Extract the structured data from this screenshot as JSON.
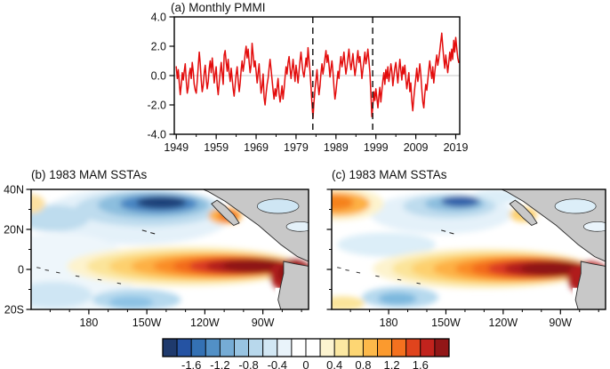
{
  "figure": {
    "background": "#ffffff"
  },
  "chart_data": [
    {
      "id": "a",
      "type": "line",
      "title": "(a) Monthly PMMI",
      "xlim": [
        1948.5,
        2020
      ],
      "ylim": [
        -4,
        4
      ],
      "x_ticks": [
        1949,
        1959,
        1969,
        1979,
        1989,
        1999,
        2009,
        2019
      ],
      "x_tick_labels": [
        "1949",
        "1959",
        "1969",
        "1979",
        "1989",
        "1999",
        "2009",
        "2019"
      ],
      "y_ticks": [
        4,
        2,
        0,
        -2,
        -4
      ],
      "y_tick_labels": [
        "4.0",
        "2.0",
        "0.0",
        "-2.0",
        "-4.0"
      ],
      "line_color": "#e30d0d",
      "zero_line_color": "#c9c9c9",
      "event_line_years": [
        1983.2,
        1998.2
      ],
      "x_start": 1949,
      "x_step": 0.25,
      "values": [
        0.6,
        -0.2,
        0.4,
        -0.5,
        -1.3,
        -0.6,
        0.2,
        -0.3,
        0.3,
        0.8,
        -0.4,
        -1.2,
        -0.8,
        0.1,
        0.5,
        -0.2,
        0.9,
        0.3,
        -0.6,
        -1.0,
        -1.2,
        -0.4,
        0.6,
        1.6,
        0.8,
        -0.3,
        -1.1,
        -0.7,
        0.2,
        0.7,
        -0.2,
        -0.9,
        -0.4,
        0.5,
        1.0,
        0.2,
        1.2,
        0.4,
        -0.5,
        0.1,
        0.6,
        -0.7,
        -1.3,
        -0.5,
        0.2,
        0.9,
        0.1,
        -0.6,
        1.4,
        1.7,
        0.9,
        0.3,
        1.1,
        0.2,
        -0.4,
        0.5,
        -0.2,
        -0.9,
        -1.4,
        -0.6,
        0.1,
        0.6,
        -0.3,
        -1.1,
        -0.5,
        0.4,
        1.0,
        0.3,
        0.8,
        1.5,
        2.0,
        1.2,
        1.8,
        0.9,
        0.2,
        0.7,
        2.2,
        1.4,
        0.6,
        1.0,
        0.3,
        -0.5,
        0.2,
        0.8,
        -0.3,
        -1.2,
        -0.7,
        0.1,
        -1.5,
        -2.0,
        -1.2,
        -0.6,
        -0.2,
        0.5,
        1.1,
        0.4,
        -0.3,
        -1.0,
        -1.6,
        -0.9,
        -1.4,
        -0.8,
        -0.2,
        -1.2,
        -1.8,
        -1.3,
        -0.7,
        -1.6,
        -0.9,
        -0.1,
        0.6,
        0.1,
        0.9,
        1.3,
        0.5,
        -0.2,
        0.4,
        1.1,
        0.3,
        -0.4,
        0.7,
        0.1,
        -0.5,
        0.3,
        1.0,
        1.6,
        0.8,
        0.2,
        -0.1,
        0.5,
        1.2,
        0.6,
        1.9,
        1.1,
        0.3,
        -0.8,
        -2.0,
        -2.9,
        -1.8,
        -0.9,
        -0.3,
        0.4,
        -0.6,
        -1.3,
        -0.7,
        0.2,
        0.8,
        0.1,
        0.6,
        1.2,
        1.7,
        0.9,
        1.4,
        0.7,
        -0.1,
        0.5,
        1.0,
        0.2,
        -0.8,
        -1.6,
        -1.1,
        -0.4,
        0.3,
        -0.2,
        0.7,
        1.3,
        0.6,
        1.0,
        1.6,
        0.8,
        0.1,
        0.6,
        1.2,
        1.8,
        1.0,
        0.4,
        0.9,
        1.5,
        0.7,
        0.0,
        0.5,
        1.1,
        1.7,
        0.9,
        1.3,
        0.6,
        -0.2,
        0.4,
        1.0,
        1.6,
        0.8,
        1.2,
        1.8,
        1.0,
        0.2,
        -1.2,
        -2.8,
        -2.0,
        -1.1,
        -1.7,
        -0.9,
        -1.5,
        -2.2,
        -1.4,
        -0.8,
        -1.8,
        -1.0,
        -0.3,
        0.2,
        -0.6,
        0.4,
        -0.2,
        0.6,
        -0.4,
        0.1,
        0.8,
        0.3,
        -0.7,
        -0.1,
        0.5,
        0.9,
        0.2,
        -0.5,
        0.3,
        1.1,
        0.4,
        -0.3,
        0.6,
        0.1,
        0.7,
        -0.2,
        -0.9,
        -0.4,
        0.2,
        -1.1,
        -0.5,
        -1.7,
        -2.4,
        -1.5,
        -0.8,
        -0.2,
        0.5,
        -0.4,
        0.1,
        0.8,
        0.1,
        -0.9,
        -1.8,
        -2.2,
        -1.3,
        -0.6,
        -1.0,
        -0.3,
        0.4,
        1.0,
        0.3,
        -0.2,
        0.6,
        -0.5,
        0.2,
        0.9,
        1.4,
        0.7,
        1.1,
        1.7,
        2.3,
        2.9,
        2.0,
        1.2,
        0.5,
        1.4,
        0.8,
        0.2,
        0.9,
        1.6,
        1.0,
        1.8,
        1.1,
        2.4,
        1.6,
        2.6,
        1.9,
        1.2,
        0.9
      ]
    },
    {
      "id": "b",
      "type": "contour-map",
      "title": "(b) 1983 MAM SSTAs",
      "x_tick_labels": [
        "180",
        "150W",
        "120W",
        "90W"
      ],
      "x_tick_base": 0.208,
      "x_tick_step": 0.0697,
      "y_tick_labels": [
        "40N",
        "20N",
        "0",
        "20S"
      ],
      "y_tick_pos": [
        0,
        0.3333,
        0.6667,
        1
      ],
      "anomaly_blobs": [
        {
          "cx": 38,
          "cy": 22,
          "rx": 34,
          "ry": 24,
          "color": "#e4f1f9"
        },
        {
          "cx": 10,
          "cy": 70,
          "rx": 28,
          "ry": 34,
          "color": "#eef6fb"
        },
        {
          "cx": 8,
          "cy": 24,
          "rx": 13,
          "ry": 11,
          "color": "#bedcee"
        },
        {
          "cx": 42,
          "cy": 16,
          "rx": 26,
          "ry": 15,
          "color": "#bedcee"
        },
        {
          "cx": 44,
          "cy": 13,
          "rx": 20,
          "ry": 11,
          "color": "#8cbede"
        },
        {
          "cx": 46,
          "cy": 12,
          "rx": 14,
          "ry": 7.5,
          "color": "#4a86c2"
        },
        {
          "cx": 47,
          "cy": 11,
          "rx": 9,
          "ry": 5,
          "color": "#1f3f78"
        },
        {
          "cx": 0,
          "cy": 12,
          "rx": 5,
          "ry": 8,
          "color": "#fce0a0"
        },
        {
          "cx": 8,
          "cy": 88,
          "rx": 14,
          "ry": 11,
          "color": "#cfe6f4"
        },
        {
          "cx": 38,
          "cy": 92,
          "rx": 16,
          "ry": 9,
          "color": "#b6d9ee"
        },
        {
          "cx": 36,
          "cy": 94,
          "rx": 8,
          "ry": 5,
          "color": "#8cc2e4"
        },
        {
          "cx": 55,
          "cy": 64,
          "rx": 42,
          "ry": 17,
          "color": "#fdf3cd"
        },
        {
          "cx": 58,
          "cy": 64,
          "rx": 38,
          "ry": 14,
          "color": "#fbe49a"
        },
        {
          "cx": 62,
          "cy": 64,
          "rx": 34,
          "ry": 12,
          "color": "#fdd06e"
        },
        {
          "cx": 66,
          "cy": 64,
          "rx": 30,
          "ry": 10.5,
          "color": "#fdb044"
        },
        {
          "cx": 70,
          "cy": 64,
          "rx": 26,
          "ry": 9,
          "color": "#fa8c28"
        },
        {
          "cx": 73,
          "cy": 64,
          "rx": 22,
          "ry": 8,
          "color": "#f26a1e"
        },
        {
          "cx": 76,
          "cy": 64,
          "rx": 19,
          "ry": 7,
          "color": "#da3b20"
        },
        {
          "cx": 79,
          "cy": 64,
          "rx": 16,
          "ry": 6.2,
          "color": "#b01c1a"
        },
        {
          "cx": 82,
          "cy": 63.5,
          "rx": 13,
          "ry": 5.6,
          "color": "#8e1616"
        },
        {
          "cx": 94,
          "cy": 72,
          "rx": 8,
          "ry": 14,
          "color": "#b01c1a"
        },
        {
          "cx": 95,
          "cy": 70,
          "rx": 6,
          "ry": 10,
          "color": "#8e1616"
        },
        {
          "cx": 70,
          "cy": 22,
          "rx": 6,
          "ry": 7,
          "color": "#fdb044"
        },
        {
          "cx": 71,
          "cy": 22,
          "rx": 3.5,
          "ry": 4.5,
          "color": "#f26a1e"
        }
      ],
      "water_patches": [
        {
          "cx": 89,
          "cy": 14,
          "rx": 7.5,
          "ry": 6,
          "color": "#cfe6f4"
        },
        {
          "cx": 97,
          "cy": 31,
          "rx": 5,
          "ry": 4,
          "color": "#e4f1f9"
        }
      ]
    },
    {
      "id": "c",
      "type": "contour-map",
      "title": "(c) 1983 MAM SSTAs",
      "x_tick_labels": [
        "180",
        "150W",
        "120W",
        "90W"
      ],
      "x_tick_base": 0.208,
      "x_tick_step": 0.0697,
      "y_tick_labels": [],
      "y_tick_pos": [
        0,
        0.3333,
        0.6667,
        1
      ],
      "anomaly_blobs": [
        {
          "cx": 40,
          "cy": 20,
          "rx": 26,
          "ry": 17,
          "color": "#e4f1f9"
        },
        {
          "cx": 60,
          "cy": 6,
          "rx": 9,
          "ry": 6,
          "color": "#dceef8"
        },
        {
          "cx": 43,
          "cy": 14,
          "rx": 17,
          "ry": 10,
          "color": "#bedcee"
        },
        {
          "cx": 45,
          "cy": 12,
          "rx": 11,
          "ry": 6.5,
          "color": "#8cbede"
        },
        {
          "cx": 47,
          "cy": 10,
          "rx": 7,
          "ry": 4.5,
          "color": "#2f5fa8"
        },
        {
          "cx": 2,
          "cy": 12,
          "rx": 17,
          "ry": 14,
          "color": "#fdf3cd"
        },
        {
          "cx": 2,
          "cy": 12,
          "rx": 12,
          "ry": 10,
          "color": "#fdb044"
        },
        {
          "cx": 1,
          "cy": 11,
          "rx": 7,
          "ry": 6,
          "color": "#f5821f"
        },
        {
          "cx": 20,
          "cy": 46,
          "rx": 18,
          "ry": 10,
          "color": "#dceef8"
        },
        {
          "cx": 25,
          "cy": 90,
          "rx": 14,
          "ry": 9,
          "color": "#b6d9ee"
        },
        {
          "cx": 24,
          "cy": 91,
          "rx": 7,
          "ry": 5,
          "color": "#7cb8de"
        },
        {
          "cx": 4,
          "cy": 95,
          "rx": 8,
          "ry": 6,
          "color": "#fbe49a"
        },
        {
          "cx": 55,
          "cy": 66,
          "rx": 40,
          "ry": 17,
          "color": "#fdf3cd"
        },
        {
          "cx": 58,
          "cy": 66,
          "rx": 36,
          "ry": 14.5,
          "color": "#fbe49a"
        },
        {
          "cx": 62,
          "cy": 66,
          "rx": 33,
          "ry": 12.5,
          "color": "#fdd06e"
        },
        {
          "cx": 66,
          "cy": 66,
          "rx": 29,
          "ry": 11,
          "color": "#fdb044"
        },
        {
          "cx": 70,
          "cy": 66,
          "rx": 25,
          "ry": 9.6,
          "color": "#fa8c28"
        },
        {
          "cx": 73,
          "cy": 66,
          "rx": 22,
          "ry": 8.6,
          "color": "#f26a1e"
        },
        {
          "cx": 76,
          "cy": 66,
          "rx": 19,
          "ry": 7.6,
          "color": "#da3b20"
        },
        {
          "cx": 79,
          "cy": 66,
          "rx": 16,
          "ry": 6.8,
          "color": "#b01c1a"
        },
        {
          "cx": 82,
          "cy": 66,
          "rx": 13,
          "ry": 6,
          "color": "#8e1616"
        },
        {
          "cx": 94,
          "cy": 74,
          "rx": 8,
          "ry": 14,
          "color": "#b01c1a"
        },
        {
          "cx": 70,
          "cy": 21,
          "rx": 5,
          "ry": 6,
          "color": "#fdd06e"
        }
      ],
      "water_patches": [
        {
          "cx": 89,
          "cy": 14,
          "rx": 7.5,
          "ry": 6,
          "color": "#dceef8"
        },
        {
          "cx": 97,
          "cy": 31,
          "rx": 5,
          "ry": 4,
          "color": "#eaf4fb"
        }
      ]
    }
  ],
  "colorbar": {
    "colors": [
      "#1f3a6d",
      "#2553a3",
      "#3471b4",
      "#5290c6",
      "#76acd5",
      "#98c4e2",
      "#b8d8ec",
      "#d2e7f4",
      "#e9f3fa",
      "#ffffff",
      "#ffffff",
      "#fdf4d0",
      "#fce8a2",
      "#fdd673",
      "#fdb94a",
      "#fb9a2e",
      "#f4711f",
      "#e0441d",
      "#c2231d",
      "#921617"
    ],
    "tick_labels": [
      "-1.6",
      "-1.2",
      "-0.8",
      "-0.4",
      "0",
      "0.4",
      "0.8",
      "1.2",
      "1.6"
    ]
  }
}
